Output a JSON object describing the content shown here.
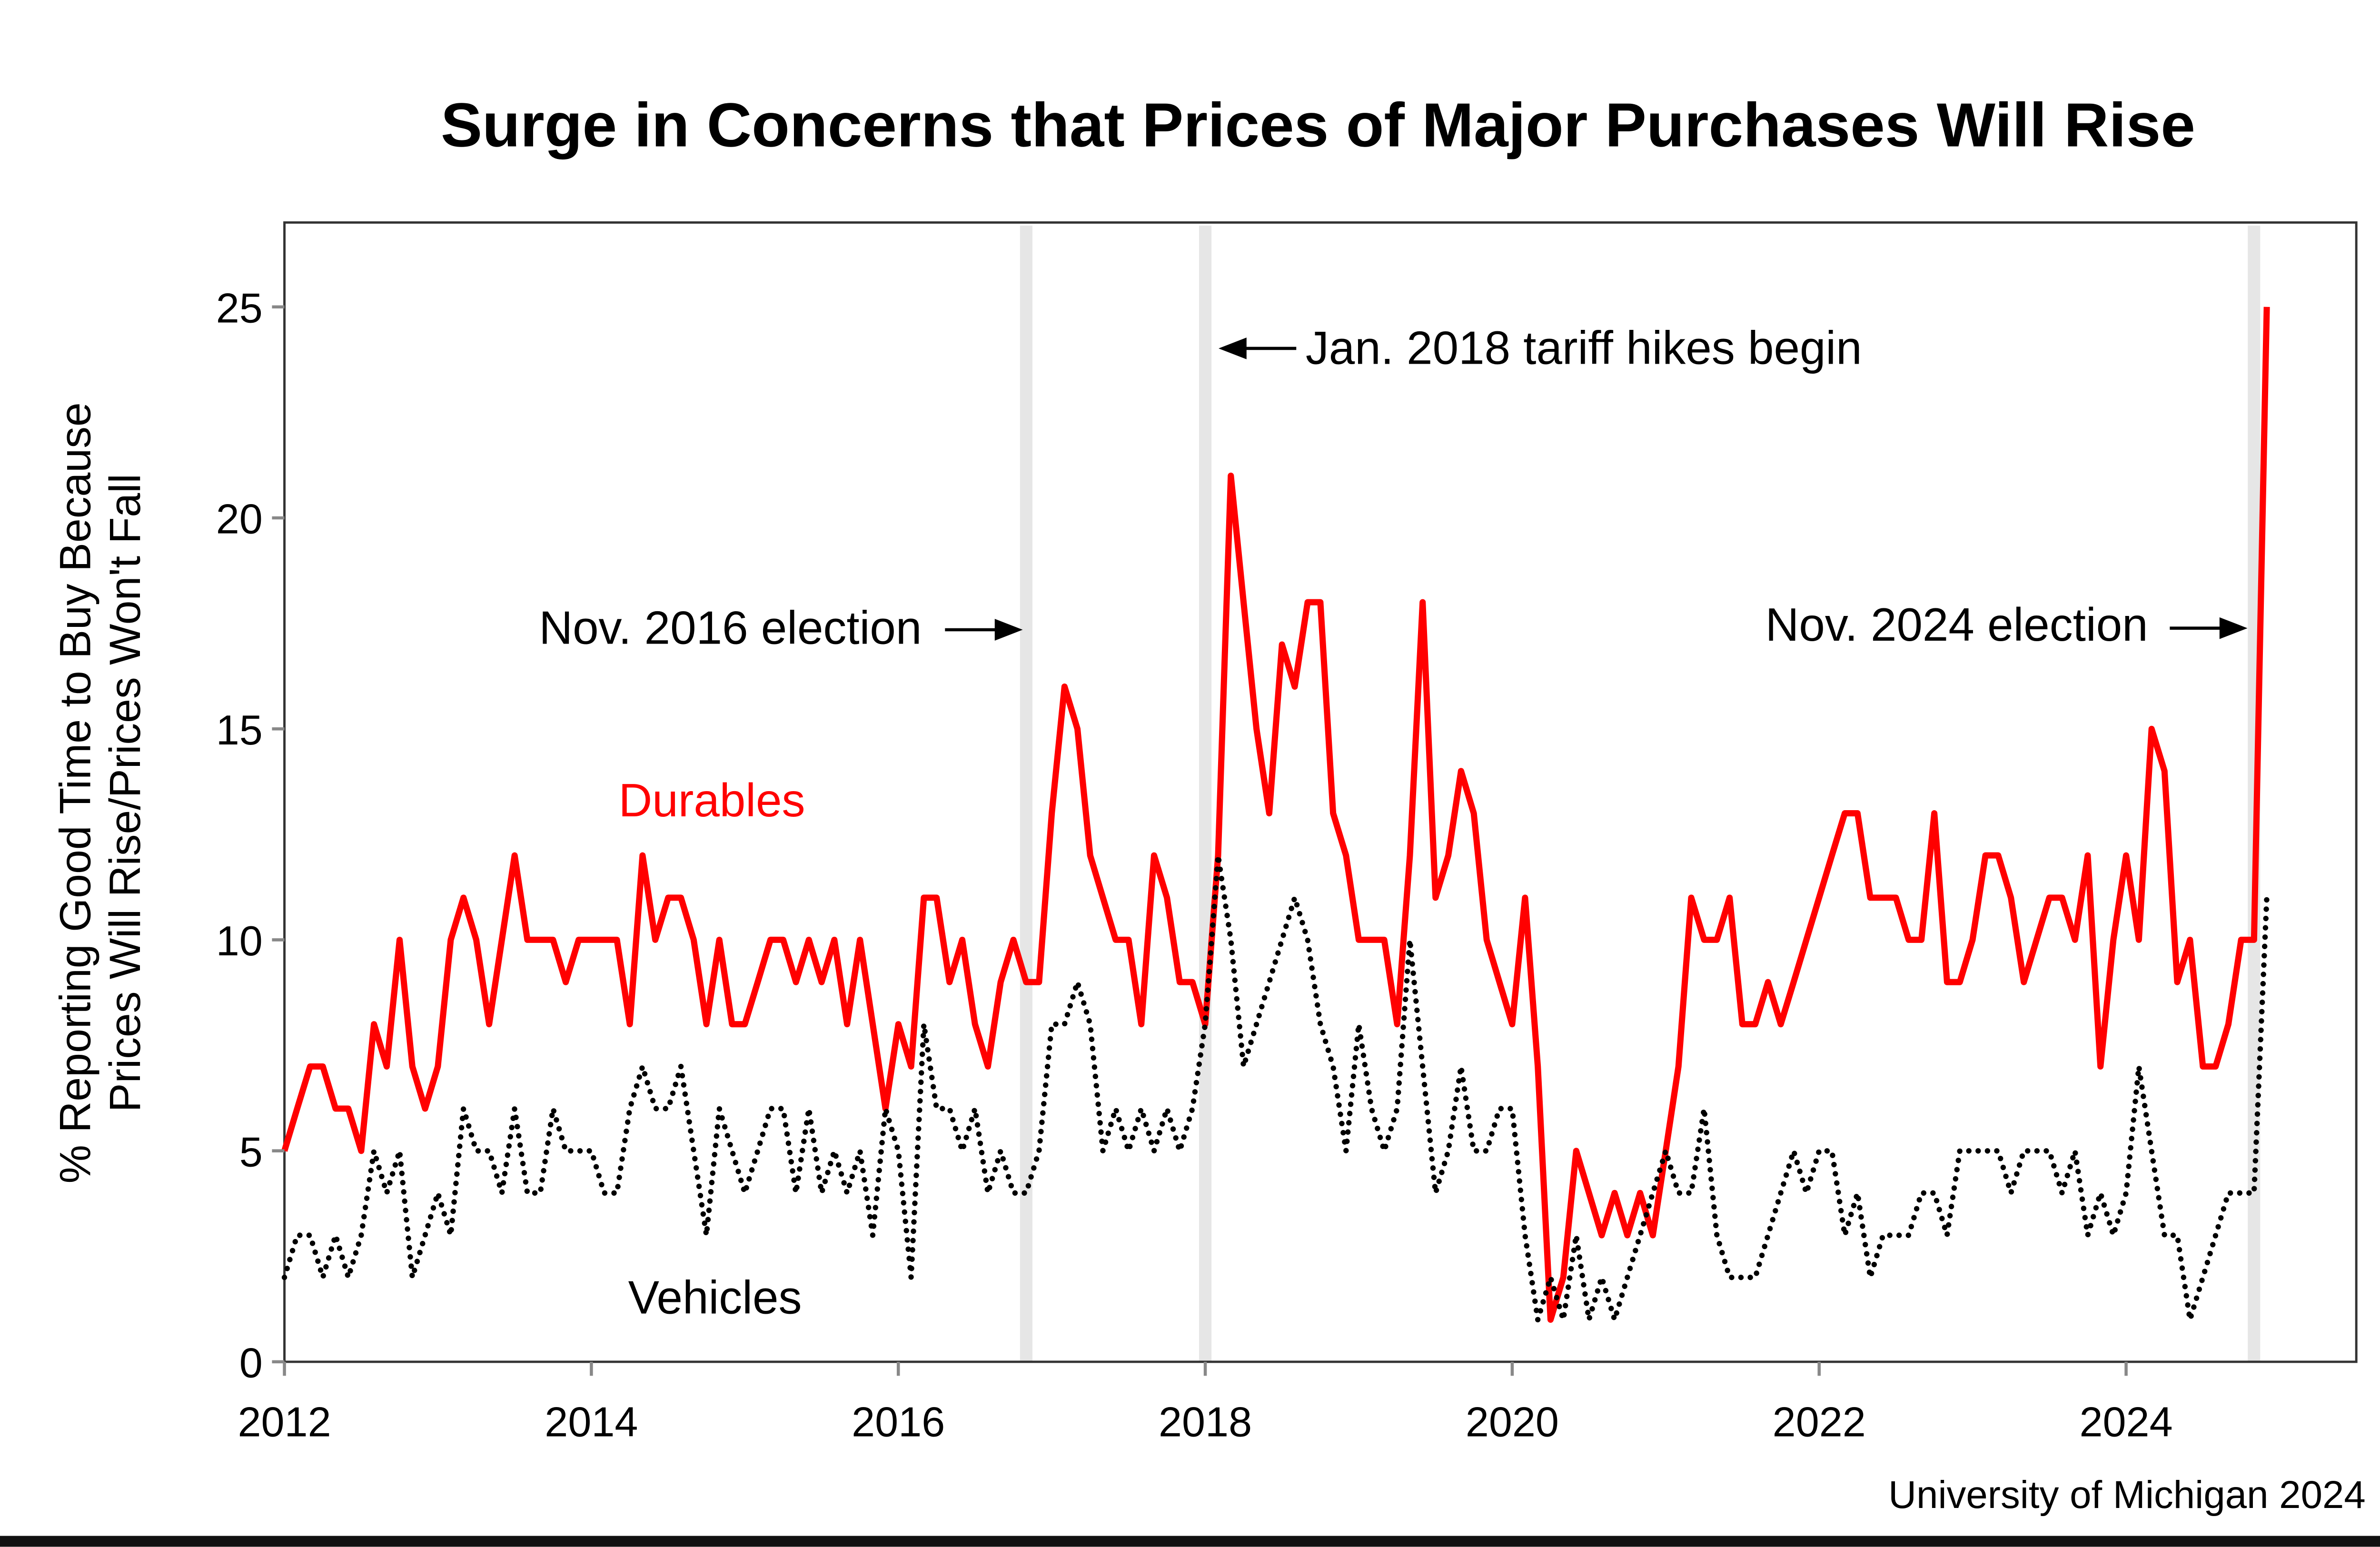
{
  "chart_data": {
    "type": "line",
    "title": "Surge in Concerns that Prices of Major Purchases Will Rise",
    "ylabel_line1": "% Reporting Good Time to Buy Because",
    "ylabel_line2": "Prices Will Rise/Prices Won't Fall",
    "xlabel": "",
    "x_start": "2012-01",
    "x_frequency": "monthly",
    "xlim": [
      2012,
      2025.5
    ],
    "ylim": [
      0,
      27
    ],
    "x_ticks": [
      "2012",
      "2014",
      "2016",
      "2018",
      "2020",
      "2022",
      "2024"
    ],
    "y_ticks": [
      "0",
      "5",
      "10",
      "15",
      "20",
      "25"
    ],
    "grid": false,
    "series": [
      {
        "name": "Durables",
        "color": "#ff0000",
        "style": "solid",
        "values": [
          5,
          6,
          7,
          7,
          6,
          6,
          5,
          8,
          7,
          10,
          7,
          6,
          7,
          10,
          11,
          10,
          8,
          10,
          12,
          10,
          10,
          10,
          9,
          10,
          10,
          10,
          10,
          8,
          12,
          10,
          11,
          11,
          10,
          8,
          10,
          8,
          8,
          9,
          10,
          10,
          9,
          10,
          9,
          10,
          8,
          10,
          8,
          6,
          8,
          7,
          11,
          11,
          9,
          10,
          8,
          7,
          9,
          10,
          9,
          9,
          13,
          16,
          15,
          12,
          11,
          10,
          10,
          8,
          12,
          11,
          9,
          9,
          8,
          12,
          21,
          18,
          15,
          13,
          17,
          16,
          18,
          18,
          13,
          12,
          10,
          10,
          10,
          8,
          12,
          18,
          11,
          12,
          14,
          13,
          10,
          9,
          8,
          11,
          7,
          1,
          2,
          5,
          4,
          3,
          4,
          3,
          4,
          3,
          5,
          7,
          11,
          10,
          10,
          11,
          8,
          8,
          9,
          8,
          9,
          10,
          11,
          12,
          13,
          13,
          11,
          11,
          11,
          10,
          10,
          13,
          9,
          9,
          10,
          12,
          12,
          11,
          9,
          10,
          11,
          11,
          10,
          12,
          7,
          10,
          12,
          10,
          15,
          14,
          9,
          10,
          7,
          7,
          8,
          10,
          10,
          25
        ]
      },
      {
        "name": "Vehicles",
        "color": "#000000",
        "style": "dotted",
        "values": [
          2,
          3,
          3,
          2,
          3,
          2,
          3,
          5,
          4,
          5,
          2,
          3,
          4,
          3,
          6,
          5,
          5,
          4,
          6,
          4,
          4,
          6,
          5,
          5,
          5,
          4,
          4,
          6,
          7,
          6,
          6,
          7,
          5,
          3,
          6,
          5,
          4,
          5,
          6,
          6,
          4,
          6,
          4,
          5,
          4,
          5,
          3,
          6,
          5,
          2,
          8,
          6,
          6,
          5,
          6,
          4,
          5,
          4,
          4,
          5,
          8,
          8,
          9,
          8,
          5,
          6,
          5,
          6,
          5,
          6,
          5,
          6,
          8,
          12,
          10,
          7,
          8,
          9,
          10,
          11,
          10,
          8,
          7,
          5,
          8,
          6,
          5,
          6,
          10,
          7,
          4,
          5,
          7,
          5,
          5,
          6,
          6,
          3,
          1,
          2,
          1,
          3,
          1,
          2,
          1,
          2,
          3,
          4,
          5,
          4,
          4,
          6,
          3,
          2,
          2,
          2,
          3,
          4,
          5,
          4,
          5,
          5,
          3,
          4,
          2,
          3,
          3,
          3,
          4,
          4,
          3,
          5,
          5,
          5,
          5,
          4,
          5,
          5,
          5,
          4,
          5,
          3,
          4,
          3,
          4,
          7,
          5,
          3,
          3,
          1,
          2,
          3,
          4,
          4,
          4,
          11
        ]
      }
    ],
    "event_bands": [
      {
        "date": "2016-11",
        "label": "Nov. 2016 election"
      },
      {
        "date": "2018-01",
        "label": "Jan. 2018 tariff hikes begin"
      },
      {
        "date": "2024-11",
        "label": "Nov. 2024 election"
      }
    ],
    "band_color": "#e6e6e6",
    "series_labels": {
      "durables": "Durables",
      "vehicles": "Vehicles"
    },
    "source": "University of Michigan 2024"
  }
}
